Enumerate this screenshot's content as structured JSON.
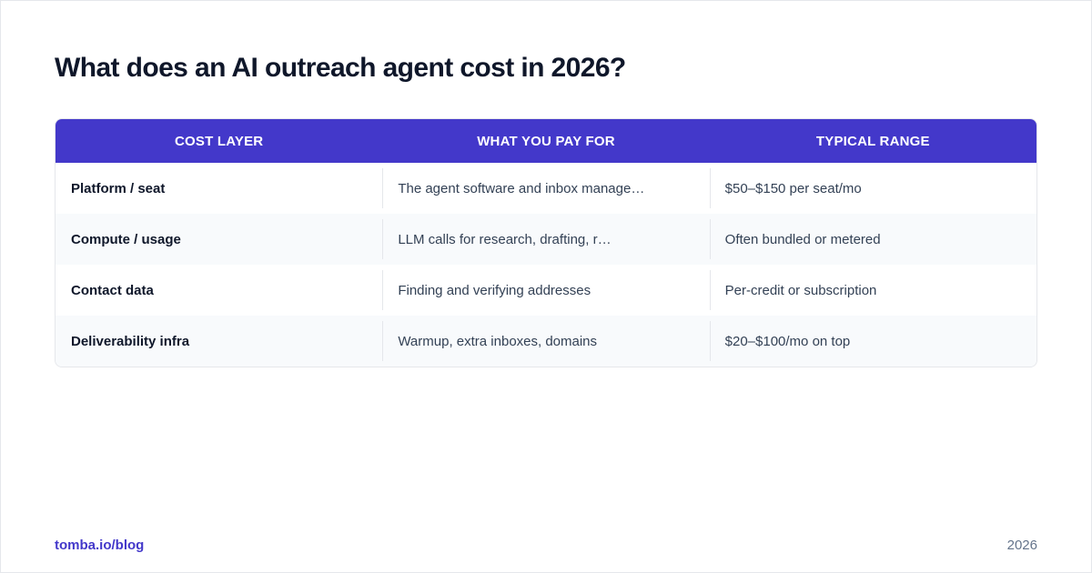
{
  "title": "What does an AI outreach agent cost in 2026?",
  "table": {
    "headers": [
      "COST LAYER",
      "WHAT YOU PAY FOR",
      "TYPICAL RANGE"
    ],
    "rows": [
      [
        "Platform / seat",
        "The agent software and inbox manage…",
        "$50–$150 per seat/mo"
      ],
      [
        "Compute / usage",
        "LLM calls for research, drafting, r…",
        "Often bundled or metered"
      ],
      [
        "Contact data",
        "Finding and verifying addresses",
        "Per-credit or subscription"
      ],
      [
        "Deliverability infra",
        "Warmup, extra inboxes, domains",
        "$20–$100/mo on top"
      ]
    ]
  },
  "footer": {
    "link": "tomba.io/blog",
    "year": "2026"
  },
  "colors": {
    "accent": "#4338ca",
    "title": "#0f172a",
    "row_alt": "#f8fafc"
  }
}
